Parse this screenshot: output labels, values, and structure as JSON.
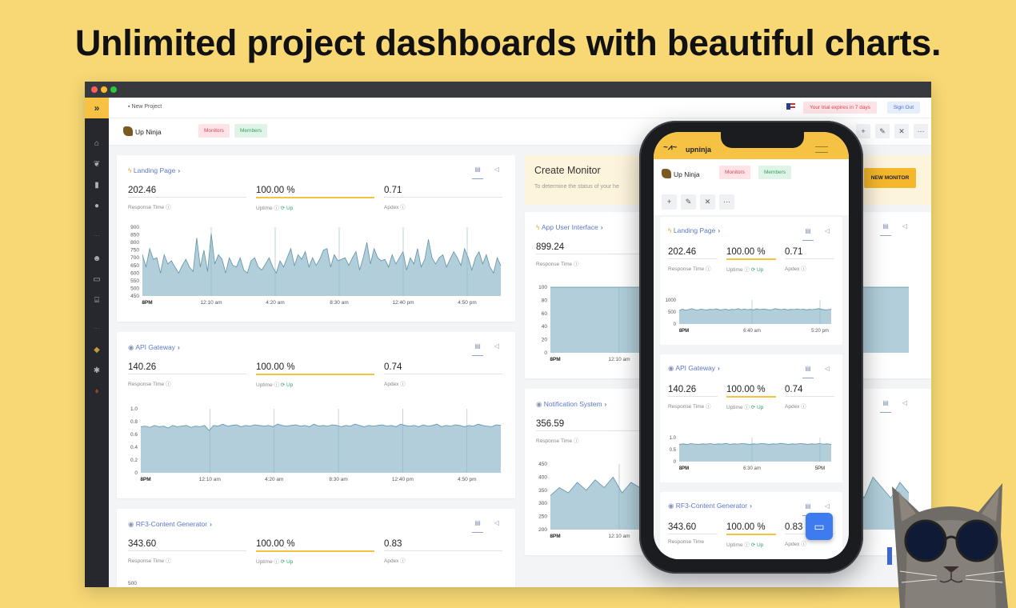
{
  "headline": "Unlimited project dashboards with beautiful charts.",
  "topbar": {
    "new_project": "New Project",
    "trial": "Your trial expires in 7 days",
    "sign_out": "Sign Out"
  },
  "project": {
    "name": "Up Ninja",
    "monitors_tab": "Monitors",
    "members_tab": "Members"
  },
  "create_monitor": {
    "title": "Create Monitor",
    "subtitle": "To determine the status of your he",
    "button": "NEW MONITOR"
  },
  "labels": {
    "response_time": "Response Time",
    "uptime": "Uptime",
    "apdex": "Apdex",
    "up": "Up"
  },
  "monitors": [
    {
      "name": "Landing Page",
      "response": "202.46",
      "uptime": "100.00 %",
      "apdex": "0.71",
      "chart_data": {
        "type": "area",
        "y_ticks": [
          "900",
          "850",
          "800",
          "750",
          "700",
          "650",
          "600",
          "550",
          "500",
          "450"
        ],
        "ylim": [
          450,
          900
        ],
        "x_ticks": [
          "8PM",
          "12:10 am",
          "4:20 am",
          "8:30 am",
          "12:40 pm",
          "4:50 pm"
        ],
        "values": [
          720,
          640,
          760,
          690,
          700,
          600,
          720,
          660,
          680,
          640,
          600,
          650,
          690,
          640,
          610,
          830,
          640,
          750,
          610,
          860,
          660,
          720,
          690,
          600,
          700,
          650,
          640,
          700,
          620,
          600,
          680,
          700,
          640,
          620,
          660,
          700,
          640,
          600,
          680,
          640,
          700,
          760,
          650,
          720,
          690,
          740,
          640,
          700,
          650,
          690,
          750,
          760,
          640,
          720,
          680,
          690,
          700,
          650,
          700,
          740,
          620,
          700,
          800,
          660,
          760,
          700,
          680,
          690,
          640,
          720,
          660,
          700,
          740,
          620,
          700,
          660,
          760,
          640,
          690,
          820,
          700,
          660,
          700,
          720,
          640,
          690,
          740,
          700,
          650,
          760,
          700,
          620,
          700,
          740,
          660,
          720,
          640,
          600,
          700,
          650
        ]
      }
    },
    {
      "name": "API Gateway",
      "response": "140.26",
      "uptime": "100.00 %",
      "apdex": "0.74",
      "chart_data": {
        "type": "area",
        "y_ticks": [
          "1.0",
          "0.8",
          "0.6",
          "0.4",
          "0.2",
          "0"
        ],
        "ylim": [
          0,
          1.0
        ],
        "x_ticks": [
          "8PM",
          "12:10 am",
          "4:20 am",
          "8:30 am",
          "12:40 pm",
          "4:50 pm"
        ],
        "values": [
          0.72,
          0.73,
          0.71,
          0.74,
          0.72,
          0.73,
          0.7,
          0.74,
          0.72,
          0.73,
          0.74,
          0.71,
          0.73,
          0.72,
          0.74,
          0.66,
          0.74,
          0.73,
          0.76,
          0.73,
          0.74,
          0.75,
          0.72,
          0.74,
          0.73,
          0.75,
          0.74,
          0.73,
          0.74,
          0.72,
          0.76,
          0.74,
          0.73,
          0.74,
          0.75,
          0.73,
          0.74,
          0.72,
          0.76,
          0.73,
          0.74,
          0.73,
          0.75,
          0.74,
          0.72,
          0.74,
          0.73,
          0.76,
          0.74,
          0.72,
          0.74,
          0.73,
          0.74,
          0.75,
          0.73,
          0.74,
          0.72,
          0.76,
          0.74,
          0.73,
          0.74,
          0.72,
          0.75,
          0.73,
          0.74,
          0.76,
          0.72,
          0.74,
          0.73,
          0.75,
          0.74,
          0.72,
          0.74,
          0.73,
          0.76,
          0.74,
          0.73,
          0.72,
          0.75,
          0.74
        ]
      }
    },
    {
      "name": "RF3-Content Generator",
      "response": "343.60",
      "uptime": "100.00 %",
      "apdex": "0.83",
      "chart_data": {
        "type": "area",
        "y_ticks": [
          "500"
        ]
      }
    },
    {
      "name": "App User Interface",
      "response": "899.24",
      "chart_data": {
        "type": "area",
        "y_ticks": [
          "100",
          "80",
          "60",
          "40",
          "20",
          "0"
        ],
        "ylim": [
          0,
          100
        ],
        "x_ticks": [
          "8PM",
          "12:10 am"
        ],
        "values": [
          100,
          100,
          100,
          100,
          100,
          100,
          100,
          100,
          100,
          100,
          100,
          100,
          100,
          100,
          100,
          100,
          92,
          100,
          100,
          100,
          100,
          100,
          100,
          100,
          100,
          100,
          100,
          100,
          100,
          100,
          100,
          100,
          100,
          100,
          100,
          100,
          100,
          100,
          100,
          100
        ]
      }
    },
    {
      "name": "Notification System",
      "response": "356.59",
      "chart_data": {
        "type": "area",
        "y_ticks": [
          "450",
          "400",
          "350",
          "300",
          "250",
          "200"
        ],
        "ylim": [
          200,
          450
        ],
        "x_ticks": [
          "8PM",
          "12:10 am"
        ],
        "values": [
          330,
          360,
          340,
          380,
          350,
          390,
          360,
          400,
          340,
          380,
          360,
          390,
          350,
          370,
          340,
          380,
          360,
          350,
          420,
          370,
          380,
          400,
          440,
          300,
          360,
          280,
          340,
          260,
          320,
          240,
          340,
          280,
          360,
          300,
          380,
          320,
          400,
          360,
          320,
          380,
          340
        ]
      }
    }
  ],
  "phone": {
    "brand": "upninja",
    "monitors": [
      {
        "name": "Landing Page",
        "response": "202.46",
        "uptime": "100.00 %",
        "apdex": "0.71",
        "chart_data": {
          "type": "area",
          "y_ticks": [
            "1000",
            "500",
            "0"
          ],
          "ylim": [
            0,
            1000
          ],
          "x_ticks": [
            "8PM",
            "6:40 am",
            "5:20 pm"
          ],
          "values": [
            560,
            620,
            580,
            600,
            640,
            600,
            580,
            620,
            600,
            590,
            610,
            600,
            630,
            590,
            600,
            620,
            580,
            610,
            600,
            640,
            590,
            620,
            600,
            610,
            590,
            630,
            600,
            620,
            610,
            590,
            600,
            640,
            610,
            600,
            620,
            590,
            610,
            600,
            630,
            600,
            620,
            590,
            610,
            600,
            620,
            640,
            610,
            590,
            600,
            620
          ]
        }
      },
      {
        "name": "API Gateway",
        "response": "140.26",
        "uptime": "100.00 %",
        "apdex": "0.74",
        "chart_data": {
          "type": "area",
          "y_ticks": [
            "1.0",
            "0.5",
            "0"
          ],
          "ylim": [
            0,
            1.0
          ],
          "x_ticks": [
            "8PM",
            "6:30 am",
            "5PM"
          ],
          "values": [
            0.72,
            0.74,
            0.71,
            0.75,
            0.73,
            0.72,
            0.74,
            0.73,
            0.75,
            0.72,
            0.74,
            0.73,
            0.76,
            0.72,
            0.74,
            0.73,
            0.75,
            0.74,
            0.72,
            0.74,
            0.73,
            0.75,
            0.74,
            0.72,
            0.74,
            0.73,
            0.76,
            0.74,
            0.72,
            0.74,
            0.73,
            0.75,
            0.74,
            0.72,
            0.74,
            0.73,
            0.75,
            0.73,
            0.74,
            0.72
          ]
        }
      },
      {
        "name": "RF3-Content Generator",
        "response": "343.60",
        "uptime": "100.00 %",
        "apdex": "0.83"
      }
    ]
  },
  "colors": {
    "background": "#f7d874",
    "accent_yellow": "#f5c243",
    "chart_fill": "#a9c9d6",
    "chart_line": "#5f92a7",
    "link_blue": "#5c79c7",
    "sidebar": "#26282e"
  }
}
